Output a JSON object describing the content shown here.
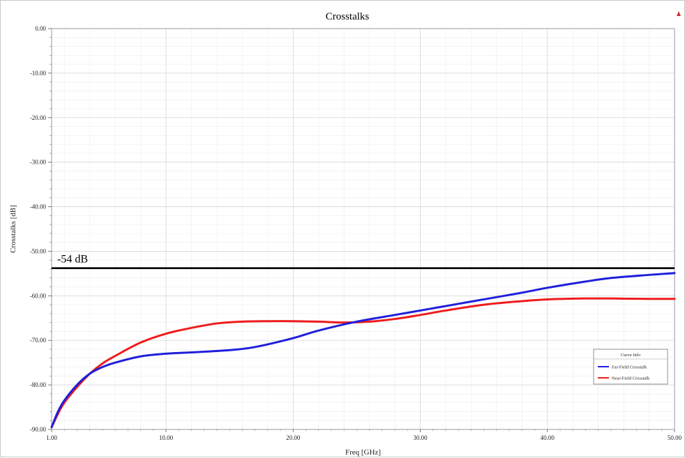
{
  "chart_data": {
    "type": "line",
    "title": "Crosstalks",
    "xlabel": "Freq [GHz]",
    "ylabel": "Crosstalks [dB]",
    "xlim": [
      1.0,
      50.0
    ],
    "ylim": [
      -90.0,
      0.0
    ],
    "x_ticks": [
      "1.00",
      "10.00",
      "20.00",
      "30.00",
      "40.00",
      "50.00"
    ],
    "x_tick_values": [
      1,
      10,
      20,
      30,
      40,
      50
    ],
    "y_ticks": [
      "0.00",
      "-10.00",
      "-20.00",
      "-30.00",
      "-40.00",
      "-50.00",
      "-60.00",
      "-70.00",
      "-80.00",
      "-90.00"
    ],
    "y_tick_values": [
      0,
      -10,
      -20,
      -30,
      -40,
      -50,
      -60,
      -70,
      -80,
      -90
    ],
    "grid": true,
    "legend": {
      "title": "Curve Info",
      "placement": "bottom-right"
    },
    "reference_line": {
      "label": "-54 dB",
      "y": -53.8,
      "color": "#000000"
    },
    "series": [
      {
        "name": "Far-Field Crosstalk",
        "color": "#1f1fdc",
        "x": [
          1,
          1.5,
          2,
          3,
          4,
          5,
          6,
          8,
          10,
          12,
          15,
          17,
          20,
          22,
          25,
          28,
          30,
          33,
          35,
          38,
          40,
          43,
          45,
          48,
          50
        ],
        "y": [
          -89.5,
          -86,
          -83.5,
          -80,
          -77.5,
          -76,
          -75,
          -73.6,
          -73,
          -72.7,
          -72.2,
          -71.5,
          -69.5,
          -67.8,
          -65.8,
          -64.3,
          -63.3,
          -61.8,
          -60.8,
          -59.3,
          -58.2,
          -56.8,
          -56,
          -55.3,
          -54.9
        ]
      },
      {
        "name": "Near-Field Crosstalk",
        "color": "#ee1c1c",
        "x": [
          1,
          1.5,
          2,
          3,
          4,
          5,
          6,
          8,
          10,
          12,
          14,
          16,
          18,
          20,
          22,
          24,
          26,
          28,
          30,
          32,
          35,
          38,
          40,
          43,
          45,
          48,
          50
        ],
        "y": [
          -89.5,
          -86.5,
          -84,
          -80.5,
          -77.5,
          -75.2,
          -73.5,
          -70.5,
          -68.5,
          -67.2,
          -66.2,
          -65.8,
          -65.7,
          -65.7,
          -65.8,
          -66,
          -65.8,
          -65.2,
          -64.3,
          -63.3,
          -62,
          -61.2,
          -60.8,
          -60.6,
          -60.6,
          -60.7,
          -60.7
        ]
      }
    ]
  }
}
